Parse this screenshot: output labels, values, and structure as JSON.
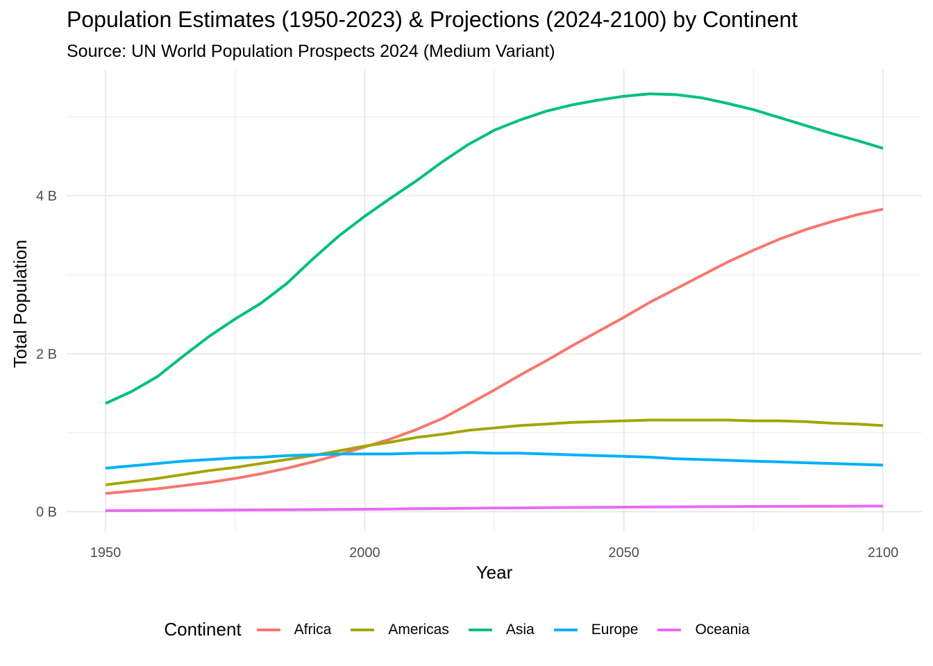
{
  "chart_data": {
    "type": "line",
    "title": "Population Estimates (1950-2023) & Projections (2024-2100) by Continent",
    "subtitle": "Source: UN World Population Prospects 2024 (Medium Variant)",
    "xlabel": "Year",
    "ylabel": "Total Population",
    "xlim": [
      1942.5,
      2107.5
    ],
    "ylim": [
      -0.25,
      5.6
    ],
    "x_ticks": [
      1950,
      2000,
      2050,
      2100
    ],
    "y_ticks": [
      0,
      2,
      4
    ],
    "y_tick_labels": [
      "0 B",
      "2 B",
      "4 B"
    ],
    "grid": true,
    "legend_title": "Continent",
    "legend_position": "bottom",
    "x": [
      1950,
      1955,
      1960,
      1965,
      1970,
      1975,
      1980,
      1985,
      1990,
      1995,
      2000,
      2005,
      2010,
      2015,
      2020,
      2025,
      2030,
      2035,
      2040,
      2045,
      2050,
      2055,
      2060,
      2065,
      2070,
      2075,
      2080,
      2085,
      2090,
      2095,
      2100
    ],
    "series": [
      {
        "name": "Africa",
        "color": "#F8766D",
        "values": [
          0.23,
          0.26,
          0.29,
          0.33,
          0.37,
          0.42,
          0.48,
          0.55,
          0.63,
          0.72,
          0.82,
          0.92,
          1.04,
          1.18,
          1.36,
          1.54,
          1.73,
          1.91,
          2.1,
          2.28,
          2.46,
          2.65,
          2.82,
          2.99,
          3.16,
          3.31,
          3.45,
          3.57,
          3.67,
          3.76,
          3.83
        ]
      },
      {
        "name": "Americas",
        "color": "#A3A500",
        "values": [
          0.34,
          0.38,
          0.42,
          0.47,
          0.52,
          0.56,
          0.61,
          0.66,
          0.71,
          0.77,
          0.83,
          0.88,
          0.94,
          0.98,
          1.03,
          1.06,
          1.09,
          1.11,
          1.13,
          1.14,
          1.15,
          1.16,
          1.16,
          1.16,
          1.16,
          1.15,
          1.15,
          1.14,
          1.12,
          1.11,
          1.09
        ]
      },
      {
        "name": "Asia",
        "color": "#00BF7D",
        "values": [
          1.37,
          1.52,
          1.71,
          1.97,
          2.22,
          2.44,
          2.64,
          2.89,
          3.2,
          3.49,
          3.74,
          3.97,
          4.19,
          4.43,
          4.65,
          4.83,
          4.96,
          5.07,
          5.15,
          5.21,
          5.26,
          5.29,
          5.28,
          5.24,
          5.17,
          5.09,
          4.99,
          4.89,
          4.79,
          4.7,
          4.6
        ]
      },
      {
        "name": "Europe",
        "color": "#00B0F6",
        "values": [
          0.55,
          0.58,
          0.61,
          0.64,
          0.66,
          0.68,
          0.69,
          0.71,
          0.72,
          0.73,
          0.73,
          0.73,
          0.74,
          0.74,
          0.75,
          0.74,
          0.74,
          0.73,
          0.72,
          0.71,
          0.7,
          0.69,
          0.67,
          0.66,
          0.65,
          0.64,
          0.63,
          0.62,
          0.61,
          0.6,
          0.59
        ]
      },
      {
        "name": "Oceania",
        "color": "#E76BF3",
        "values": [
          0.013,
          0.014,
          0.016,
          0.018,
          0.019,
          0.021,
          0.023,
          0.025,
          0.027,
          0.029,
          0.031,
          0.034,
          0.037,
          0.04,
          0.043,
          0.046,
          0.048,
          0.051,
          0.053,
          0.055,
          0.057,
          0.059,
          0.061,
          0.063,
          0.064,
          0.066,
          0.067,
          0.068,
          0.069,
          0.07,
          0.071
        ]
      }
    ]
  }
}
